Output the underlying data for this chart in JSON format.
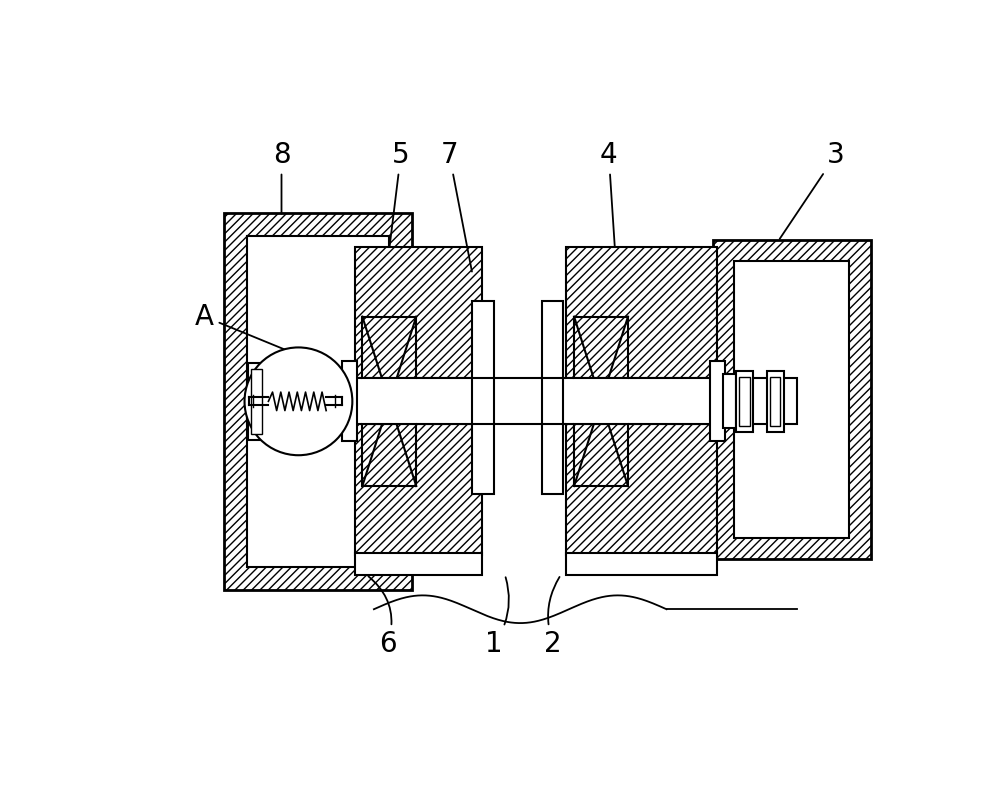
{
  "bg_color": "#ffffff",
  "lw_heavy": 2.0,
  "lw_med": 1.5,
  "lw_light": 1.0,
  "hatch": "////",
  "figsize": [
    10.0,
    7.97
  ]
}
